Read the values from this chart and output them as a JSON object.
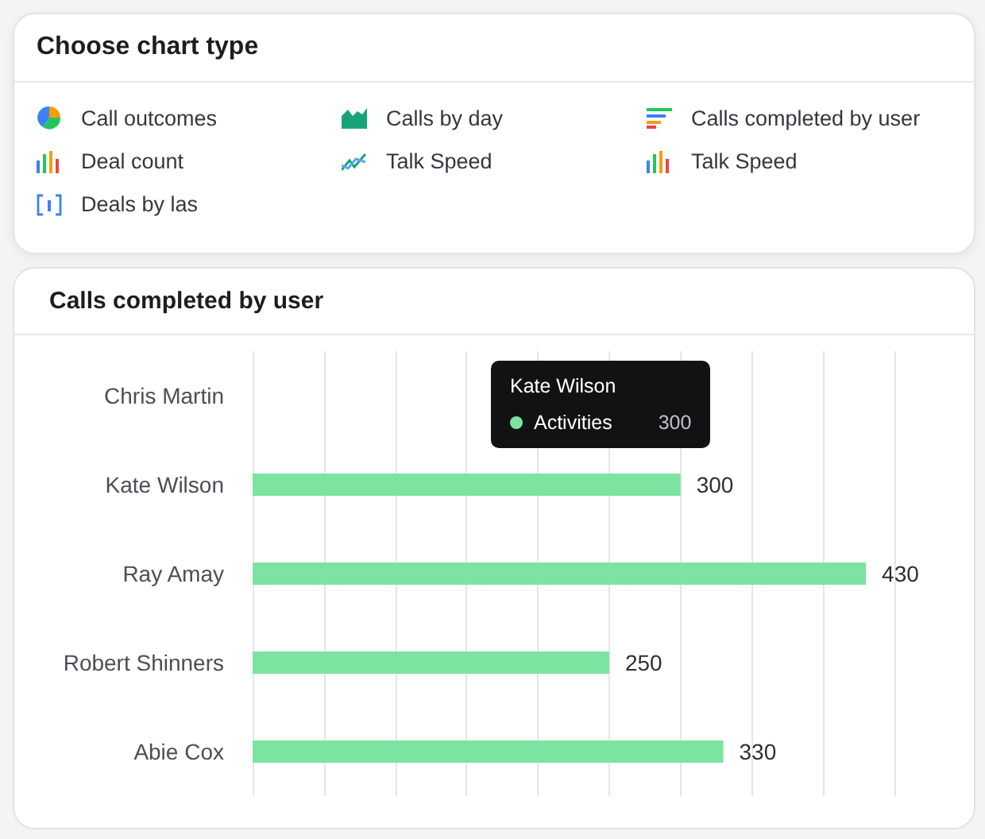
{
  "chart_data": [
    {
      "type": "other",
      "title": "Choose chart type",
      "annotations": [
        "Call outcomes",
        "Calls by day",
        "Calls completed by user",
        "Deal count",
        "Talk Speed",
        "Talk Speed",
        "Deals by las"
      ]
    },
    {
      "type": "bar",
      "orientation": "horizontal",
      "title": "Calls completed by user",
      "categories": [
        "Chris Martin",
        "Kate Wilson",
        "Ray Amay",
        "Robert Shinners",
        "Abie Cox"
      ],
      "values": [
        null,
        300,
        430,
        250,
        330
      ],
      "color": "#7de3a0",
      "data_labels": true,
      "grid": "x",
      "annotations": [
        "Kate Wilson",
        "Activities",
        "300"
      ]
    }
  ]
}
